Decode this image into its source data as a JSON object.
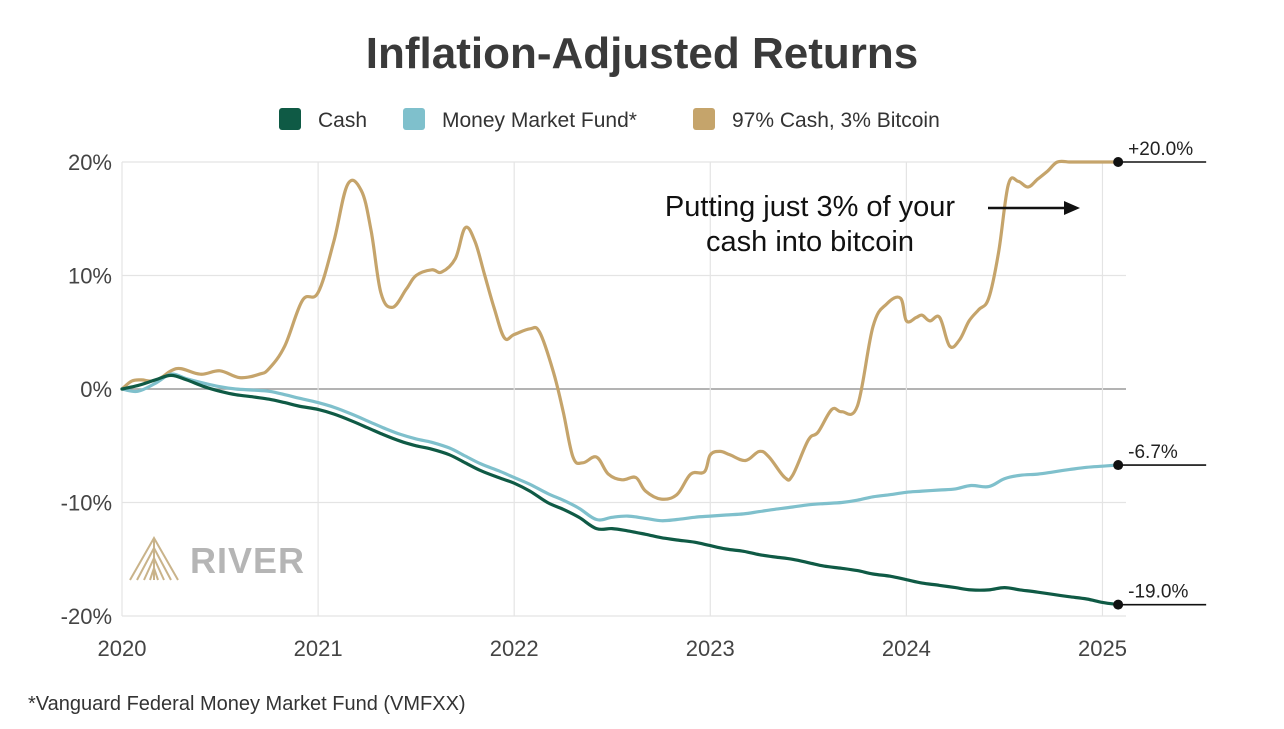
{
  "colors": {
    "cash": "#0f5a45",
    "mmf": "#7fc0cc",
    "btc": "#c5a46b",
    "grid": "#e4e4e4",
    "zero": "#9a9a9a",
    "brand": "#b5b5b5"
  },
  "brand_icon": "river-mountain-logo",
  "chart_data": {
    "type": "line",
    "title": "Inflation-Adjusted Returns",
    "xlabel": "",
    "ylabel": "",
    "xlim": [
      2020,
      2025.12
    ],
    "ylim": [
      -20,
      20
    ],
    "y_ticks": [
      20,
      10,
      0,
      -10,
      -20
    ],
    "y_tick_labels": [
      "20%",
      "10%",
      "0%",
      "-10%",
      "-20%"
    ],
    "x_ticks": [
      2020,
      2021,
      2022,
      2023,
      2024,
      2025
    ],
    "x_tick_labels": [
      "2020",
      "2021",
      "2022",
      "2023",
      "2024",
      "2025"
    ],
    "grid": true,
    "legend_position": "top-center",
    "series": [
      {
        "name": "Cash",
        "key": "cash",
        "end_label": "-19.0%",
        "x": [
          2020.0,
          2020.08,
          2020.17,
          2020.25,
          2020.33,
          2020.42,
          2020.5,
          2020.58,
          2020.67,
          2020.75,
          2020.83,
          2020.9,
          2021.0,
          2021.08,
          2021.17,
          2021.25,
          2021.33,
          2021.42,
          2021.5,
          2021.58,
          2021.67,
          2021.75,
          2021.83,
          2021.92,
          2022.0,
          2022.08,
          2022.17,
          2022.25,
          2022.33,
          2022.42,
          2022.5,
          2022.58,
          2022.67,
          2022.75,
          2022.83,
          2022.92,
          2023.0,
          2023.08,
          2023.17,
          2023.25,
          2023.33,
          2023.42,
          2023.5,
          2023.58,
          2023.67,
          2023.75,
          2023.83,
          2023.92,
          2024.0,
          2024.08,
          2024.17,
          2024.25,
          2024.33,
          2024.42,
          2024.5,
          2024.58,
          2024.67,
          2024.75,
          2024.83,
          2024.92,
          2025.0,
          2025.08
        ],
        "y": [
          0.0,
          0.3,
          0.8,
          1.2,
          0.8,
          0.2,
          -0.2,
          -0.5,
          -0.7,
          -0.9,
          -1.2,
          -1.5,
          -1.8,
          -2.2,
          -2.8,
          -3.4,
          -4.0,
          -4.6,
          -5.0,
          -5.3,
          -5.8,
          -6.5,
          -7.2,
          -7.8,
          -8.3,
          -9.0,
          -10.0,
          -10.6,
          -11.3,
          -12.3,
          -12.3,
          -12.5,
          -12.8,
          -13.1,
          -13.3,
          -13.5,
          -13.8,
          -14.1,
          -14.3,
          -14.6,
          -14.8,
          -15.0,
          -15.3,
          -15.6,
          -15.8,
          -16.0,
          -16.3,
          -16.5,
          -16.8,
          -17.1,
          -17.3,
          -17.5,
          -17.7,
          -17.7,
          -17.5,
          -17.7,
          -17.9,
          -18.1,
          -18.3,
          -18.5,
          -18.8,
          -19.0
        ]
      },
      {
        "name": "Money Market Fund*",
        "key": "mmf",
        "end_label": "-6.7%",
        "x": [
          2020.0,
          2020.08,
          2020.17,
          2020.25,
          2020.33,
          2020.42,
          2020.5,
          2020.58,
          2020.67,
          2020.75,
          2020.83,
          2020.9,
          2021.0,
          2021.08,
          2021.17,
          2021.25,
          2021.33,
          2021.42,
          2021.5,
          2021.58,
          2021.67,
          2021.75,
          2021.83,
          2021.92,
          2022.0,
          2022.08,
          2022.17,
          2022.25,
          2022.33,
          2022.42,
          2022.5,
          2022.58,
          2022.67,
          2022.75,
          2022.83,
          2022.92,
          2023.0,
          2023.08,
          2023.17,
          2023.25,
          2023.33,
          2023.42,
          2023.5,
          2023.58,
          2023.67,
          2023.75,
          2023.83,
          2023.92,
          2024.0,
          2024.08,
          2024.17,
          2024.25,
          2024.33,
          2024.42,
          2024.5,
          2024.58,
          2024.67,
          2024.75,
          2024.83,
          2024.92,
          2025.0,
          2025.08
        ],
        "y": [
          0.0,
          -0.2,
          0.5,
          1.3,
          0.9,
          0.5,
          0.2,
          0.0,
          -0.1,
          -0.2,
          -0.5,
          -0.8,
          -1.2,
          -1.6,
          -2.2,
          -2.8,
          -3.4,
          -4.0,
          -4.4,
          -4.7,
          -5.2,
          -5.9,
          -6.6,
          -7.2,
          -7.8,
          -8.4,
          -9.2,
          -9.8,
          -10.5,
          -11.5,
          -11.3,
          -11.2,
          -11.4,
          -11.6,
          -11.5,
          -11.3,
          -11.2,
          -11.1,
          -11.0,
          -10.8,
          -10.6,
          -10.4,
          -10.2,
          -10.1,
          -10.0,
          -9.8,
          -9.5,
          -9.3,
          -9.1,
          -9.0,
          -8.9,
          -8.8,
          -8.5,
          -8.6,
          -7.9,
          -7.6,
          -7.5,
          -7.3,
          -7.1,
          -6.9,
          -6.8,
          -6.7
        ]
      },
      {
        "name": "97% Cash, 3% Bitcoin",
        "key": "btc",
        "end_label": "+20.0%",
        "x": [
          2020.0,
          2020.05,
          2020.1,
          2020.15,
          2020.2,
          2020.25,
          2020.3,
          2020.4,
          2020.5,
          2020.6,
          2020.7,
          2020.75,
          2020.83,
          2020.92,
          2021.0,
          2021.08,
          2021.15,
          2021.22,
          2021.27,
          2021.32,
          2021.38,
          2021.45,
          2021.5,
          2021.58,
          2021.63,
          2021.7,
          2021.75,
          2021.8,
          2021.85,
          2021.9,
          2021.95,
          2022.0,
          2022.08,
          2022.13,
          2022.2,
          2022.25,
          2022.3,
          2022.35,
          2022.42,
          2022.48,
          2022.55,
          2022.62,
          2022.67,
          2022.75,
          2022.83,
          2022.9,
          2022.97,
          2023.0,
          2023.05,
          2023.1,
          2023.18,
          2023.25,
          2023.3,
          2023.38,
          2023.42,
          2023.5,
          2023.55,
          2023.62,
          2023.67,
          2023.75,
          2023.83,
          2023.9,
          2023.97,
          2024.0,
          2024.05,
          2024.08,
          2024.12,
          2024.17,
          2024.22,
          2024.27,
          2024.32,
          2024.37,
          2024.42,
          2024.47,
          2024.52,
          2024.57,
          2024.62,
          2024.67,
          2024.72,
          2024.77,
          2024.83,
          2024.85,
          2024.9,
          2024.95,
          2025.0,
          2025.04,
          2025.08
        ],
        "y": [
          0.0,
          0.7,
          0.8,
          0.7,
          1.0,
          1.6,
          1.8,
          1.3,
          1.6,
          1.0,
          1.3,
          1.8,
          3.8,
          7.8,
          8.5,
          13.0,
          18.0,
          17.5,
          14.0,
          8.5,
          7.2,
          8.8,
          10.0,
          10.5,
          10.3,
          11.5,
          14.2,
          13.0,
          10.0,
          7.0,
          4.5,
          4.8,
          5.3,
          5.0,
          1.5,
          -2.0,
          -6.0,
          -6.5,
          -6.0,
          -7.5,
          -8.0,
          -7.8,
          -9.0,
          -9.7,
          -9.3,
          -7.5,
          -7.3,
          -5.8,
          -5.5,
          -5.8,
          -6.3,
          -5.5,
          -6.0,
          -7.8,
          -7.6,
          -4.5,
          -3.8,
          -1.8,
          -2.0,
          -1.5,
          5.5,
          7.5,
          8.0,
          6.0,
          6.3,
          6.5,
          6.0,
          6.3,
          3.8,
          4.3,
          6.0,
          7.0,
          8.0,
          12.0,
          18.0,
          18.3,
          17.8,
          18.5,
          19.2,
          20.0,
          20.0,
          20.0,
          20.0,
          20.0,
          20.0,
          20.0,
          20.0
        ],
        "comment": ""
      }
    ],
    "annotation": {
      "lines": [
        "Putting just 3% of your",
        "cash into bitcoin"
      ],
      "arrow_to_series": "btc"
    },
    "footnote": "*Vanguard Federal Money Market Fund (VMFXX)",
    "watermark": "RIVER"
  }
}
